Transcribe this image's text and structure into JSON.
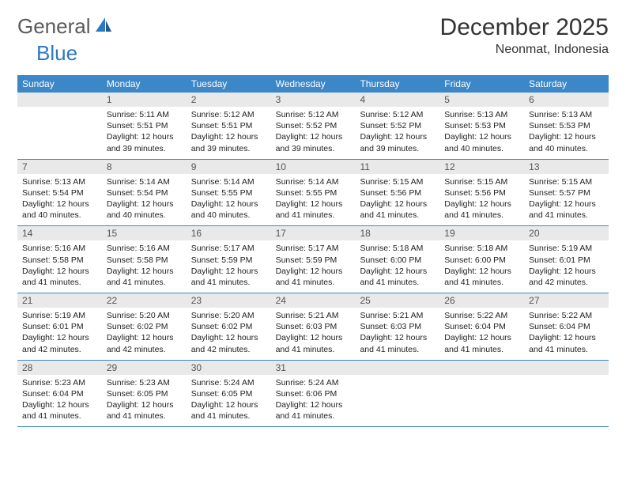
{
  "colors": {
    "header_bg": "#3b87c8",
    "daynum_bg": "#e9e9e9",
    "text": "#222222",
    "logo_gray": "#5a5a5a",
    "logo_blue": "#2b79c2",
    "row_border": "#3b87c8",
    "background": "#ffffff"
  },
  "typography": {
    "title_fontsize": 30,
    "location_fontsize": 16,
    "header_fontsize": 12,
    "daynum_fontsize": 12,
    "info_fontsize": 10.5,
    "font_family": "Arial"
  },
  "logo": {
    "word1": "General",
    "word2": "Blue"
  },
  "title": {
    "month": "December 2025",
    "location": "Neonmat, Indonesia"
  },
  "layout": {
    "weeks": 5,
    "columns": 7
  },
  "day_names": [
    "Sunday",
    "Monday",
    "Tuesday",
    "Wednesday",
    "Thursday",
    "Friday",
    "Saturday"
  ],
  "weeks": [
    [
      {
        "n": "",
        "sr": "",
        "ss": "",
        "dl": ""
      },
      {
        "n": "1",
        "sr": "5:11 AM",
        "ss": "5:51 PM",
        "dl": "12 hours and 39 minutes."
      },
      {
        "n": "2",
        "sr": "5:12 AM",
        "ss": "5:51 PM",
        "dl": "12 hours and 39 minutes."
      },
      {
        "n": "3",
        "sr": "5:12 AM",
        "ss": "5:52 PM",
        "dl": "12 hours and 39 minutes."
      },
      {
        "n": "4",
        "sr": "5:12 AM",
        "ss": "5:52 PM",
        "dl": "12 hours and 39 minutes."
      },
      {
        "n": "5",
        "sr": "5:13 AM",
        "ss": "5:53 PM",
        "dl": "12 hours and 40 minutes."
      },
      {
        "n": "6",
        "sr": "5:13 AM",
        "ss": "5:53 PM",
        "dl": "12 hours and 40 minutes."
      }
    ],
    [
      {
        "n": "7",
        "sr": "5:13 AM",
        "ss": "5:54 PM",
        "dl": "12 hours and 40 minutes."
      },
      {
        "n": "8",
        "sr": "5:14 AM",
        "ss": "5:54 PM",
        "dl": "12 hours and 40 minutes."
      },
      {
        "n": "9",
        "sr": "5:14 AM",
        "ss": "5:55 PM",
        "dl": "12 hours and 40 minutes."
      },
      {
        "n": "10",
        "sr": "5:14 AM",
        "ss": "5:55 PM",
        "dl": "12 hours and 41 minutes."
      },
      {
        "n": "11",
        "sr": "5:15 AM",
        "ss": "5:56 PM",
        "dl": "12 hours and 41 minutes."
      },
      {
        "n": "12",
        "sr": "5:15 AM",
        "ss": "5:56 PM",
        "dl": "12 hours and 41 minutes."
      },
      {
        "n": "13",
        "sr": "5:15 AM",
        "ss": "5:57 PM",
        "dl": "12 hours and 41 minutes."
      }
    ],
    [
      {
        "n": "14",
        "sr": "5:16 AM",
        "ss": "5:58 PM",
        "dl": "12 hours and 41 minutes."
      },
      {
        "n": "15",
        "sr": "5:16 AM",
        "ss": "5:58 PM",
        "dl": "12 hours and 41 minutes."
      },
      {
        "n": "16",
        "sr": "5:17 AM",
        "ss": "5:59 PM",
        "dl": "12 hours and 41 minutes."
      },
      {
        "n": "17",
        "sr": "5:17 AM",
        "ss": "5:59 PM",
        "dl": "12 hours and 41 minutes."
      },
      {
        "n": "18",
        "sr": "5:18 AM",
        "ss": "6:00 PM",
        "dl": "12 hours and 41 minutes."
      },
      {
        "n": "19",
        "sr": "5:18 AM",
        "ss": "6:00 PM",
        "dl": "12 hours and 41 minutes."
      },
      {
        "n": "20",
        "sr": "5:19 AM",
        "ss": "6:01 PM",
        "dl": "12 hours and 42 minutes."
      }
    ],
    [
      {
        "n": "21",
        "sr": "5:19 AM",
        "ss": "6:01 PM",
        "dl": "12 hours and 42 minutes."
      },
      {
        "n": "22",
        "sr": "5:20 AM",
        "ss": "6:02 PM",
        "dl": "12 hours and 42 minutes."
      },
      {
        "n": "23",
        "sr": "5:20 AM",
        "ss": "6:02 PM",
        "dl": "12 hours and 42 minutes."
      },
      {
        "n": "24",
        "sr": "5:21 AM",
        "ss": "6:03 PM",
        "dl": "12 hours and 41 minutes."
      },
      {
        "n": "25",
        "sr": "5:21 AM",
        "ss": "6:03 PM",
        "dl": "12 hours and 41 minutes."
      },
      {
        "n": "26",
        "sr": "5:22 AM",
        "ss": "6:04 PM",
        "dl": "12 hours and 41 minutes."
      },
      {
        "n": "27",
        "sr": "5:22 AM",
        "ss": "6:04 PM",
        "dl": "12 hours and 41 minutes."
      }
    ],
    [
      {
        "n": "28",
        "sr": "5:23 AM",
        "ss": "6:04 PM",
        "dl": "12 hours and 41 minutes."
      },
      {
        "n": "29",
        "sr": "5:23 AM",
        "ss": "6:05 PM",
        "dl": "12 hours and 41 minutes."
      },
      {
        "n": "30",
        "sr": "5:24 AM",
        "ss": "6:05 PM",
        "dl": "12 hours and 41 minutes."
      },
      {
        "n": "31",
        "sr": "5:24 AM",
        "ss": "6:06 PM",
        "dl": "12 hours and 41 minutes."
      },
      {
        "n": "",
        "sr": "",
        "ss": "",
        "dl": ""
      },
      {
        "n": "",
        "sr": "",
        "ss": "",
        "dl": ""
      },
      {
        "n": "",
        "sr": "",
        "ss": "",
        "dl": ""
      }
    ]
  ],
  "labels": {
    "sunrise": "Sunrise:",
    "sunset": "Sunset:",
    "daylight": "Daylight:"
  }
}
